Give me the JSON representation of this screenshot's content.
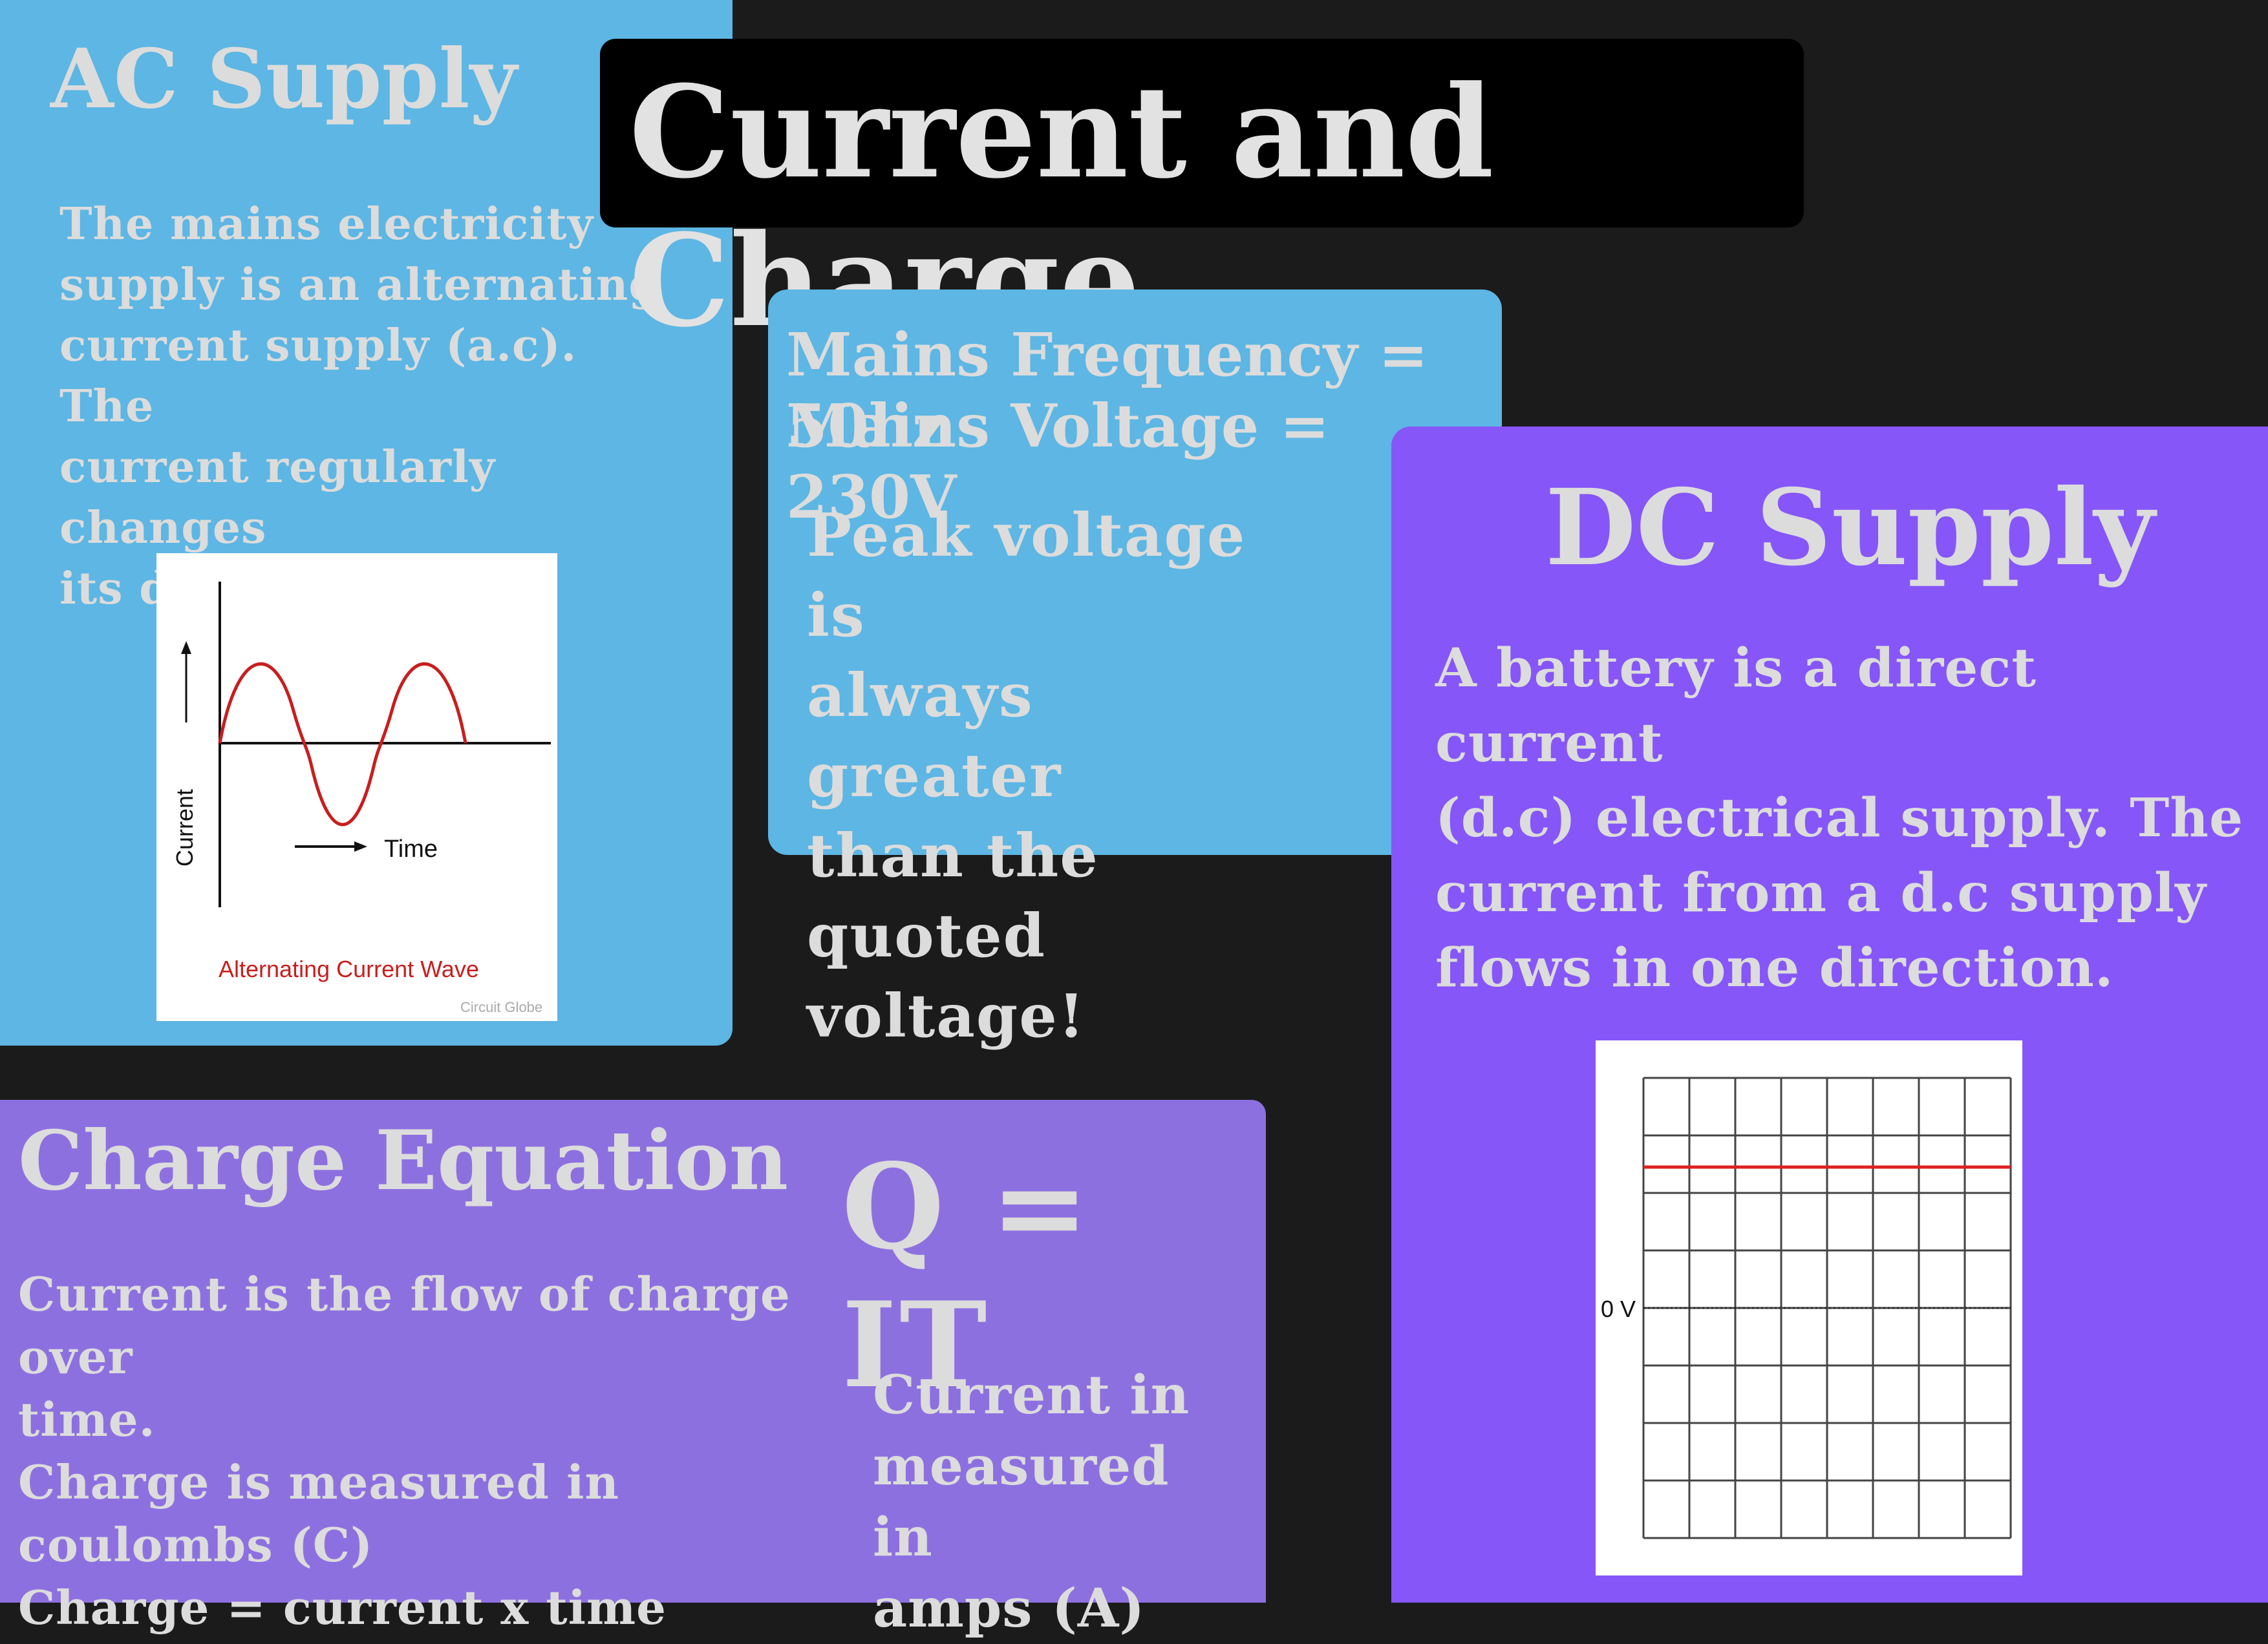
{
  "title": "Current and Charge",
  "ac_supply": {
    "heading": "AC Supply",
    "body": "The mains electricity\nsupply is an alternating\ncurrent supply (a.c). The\ncurrent regularly changes\nits direction.",
    "figure": {
      "y_axis_label": "Current",
      "x_axis_label": "Time",
      "caption": "Alternating Current Wave",
      "credit": "Circuit Globe",
      "wave_color": "#c81e1e"
    }
  },
  "mains_info": {
    "frequency": "Mains Frequency = 50hz",
    "voltage": "Mains Voltage = 230V",
    "note": "Peak voltage is\nalways greater\nthan the quoted\nvoltage!"
  },
  "dc_supply": {
    "heading": "DC Supply",
    "body": "A battery is a direct current\n(d.c) electrical supply. The\ncurrent from a d.c supply\nflows in one direction.",
    "figure": {
      "zero_label": "0 V",
      "line_color": "#e02020"
    }
  },
  "charge_equation": {
    "heading": "Charge Equation",
    "equation": "Q = IT",
    "body": "Current is the flow of charge over\ntime.\nCharge is measured in coulombs (C)\nCharge = current x time",
    "amps_note": "Current in\nmeasured in\namps (A)"
  },
  "colors": {
    "background": "#1b1b1b",
    "ac_panel": "#5db6e3",
    "dc_panel": "#8656f8",
    "charge_panel": "#8d70e0",
    "text": "#dcdcdc"
  }
}
